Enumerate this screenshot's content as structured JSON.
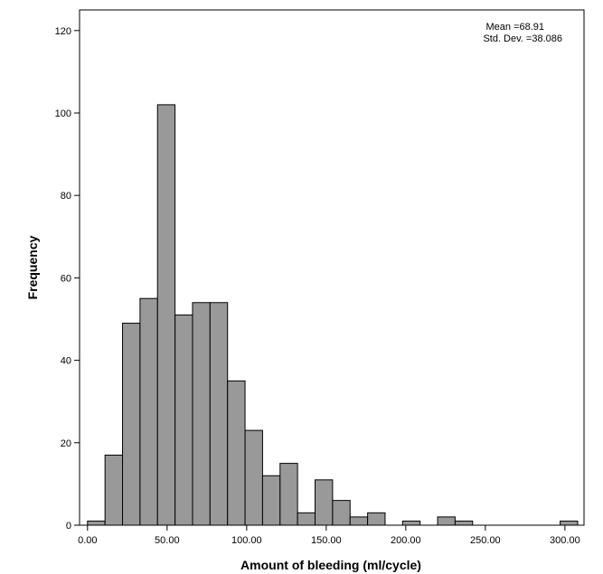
{
  "chart_data": {
    "type": "bar",
    "subtype": "histogram",
    "xlabel": "Amount of bleeding (ml/cycle)",
    "ylabel": "Frequency",
    "stats": {
      "mean": "Mean =68.91",
      "std": "Std. Dev. =38.086"
    },
    "xlim": [
      -5,
      312
    ],
    "ylim": [
      0,
      125
    ],
    "bin_width": 11,
    "x_ticks": [
      {
        "value": 0,
        "label": "0.00"
      },
      {
        "value": 50,
        "label": "50.00"
      },
      {
        "value": 100,
        "label": "100.00"
      },
      {
        "value": 150,
        "label": "150.00"
      },
      {
        "value": 200,
        "label": "200.00"
      },
      {
        "value": 250,
        "label": "250.00"
      },
      {
        "value": 300,
        "label": "300.00"
      }
    ],
    "y_ticks": [
      {
        "value": 0,
        "label": "0"
      },
      {
        "value": 20,
        "label": "20"
      },
      {
        "value": 40,
        "label": "40"
      },
      {
        "value": 60,
        "label": "60"
      },
      {
        "value": 80,
        "label": "80"
      },
      {
        "value": 100,
        "label": "100"
      },
      {
        "value": 120,
        "label": "120"
      }
    ],
    "bins": [
      {
        "start": 0,
        "end": 11,
        "count": 1
      },
      {
        "start": 11,
        "end": 22,
        "count": 17
      },
      {
        "start": 22,
        "end": 33,
        "count": 49
      },
      {
        "start": 33,
        "end": 44,
        "count": 55
      },
      {
        "start": 44,
        "end": 55,
        "count": 102
      },
      {
        "start": 55,
        "end": 66,
        "count": 51
      },
      {
        "start": 66,
        "end": 77,
        "count": 54
      },
      {
        "start": 77,
        "end": 88,
        "count": 54
      },
      {
        "start": 88,
        "end": 99,
        "count": 35
      },
      {
        "start": 99,
        "end": 110,
        "count": 23
      },
      {
        "start": 110,
        "end": 121,
        "count": 12
      },
      {
        "start": 121,
        "end": 132,
        "count": 15
      },
      {
        "start": 132,
        "end": 143,
        "count": 3
      },
      {
        "start": 143,
        "end": 154,
        "count": 11
      },
      {
        "start": 154,
        "end": 165,
        "count": 6
      },
      {
        "start": 165,
        "end": 176,
        "count": 2
      },
      {
        "start": 176,
        "end": 187,
        "count": 3
      },
      {
        "start": 187,
        "end": 198,
        "count": 0
      },
      {
        "start": 198,
        "end": 209,
        "count": 1
      },
      {
        "start": 209,
        "end": 220,
        "count": 0
      },
      {
        "start": 220,
        "end": 231,
        "count": 2
      },
      {
        "start": 231,
        "end": 242,
        "count": 1
      },
      {
        "start": 242,
        "end": 253,
        "count": 0
      },
      {
        "start": 253,
        "end": 264,
        "count": 0
      },
      {
        "start": 264,
        "end": 275,
        "count": 0
      },
      {
        "start": 275,
        "end": 286,
        "count": 0
      },
      {
        "start": 286,
        "end": 297,
        "count": 0
      },
      {
        "start": 297,
        "end": 308,
        "count": 1
      }
    ],
    "grid": false,
    "bar_color": "#999999",
    "bar_stroke": "#000000"
  }
}
